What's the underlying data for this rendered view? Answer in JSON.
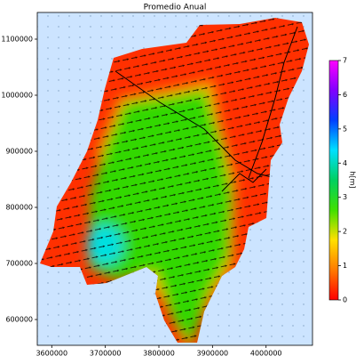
{
  "chart_data": {
    "type": "map",
    "title": "Promedio Anual",
    "xlim": [
      3573000,
      4086667
    ],
    "ylim": [
      554000,
      1147600
    ],
    "xticks": [
      3600000,
      3700000,
      3800000,
      3900000,
      4000000
    ],
    "yticks": [
      600000,
      700000,
      800000,
      900000,
      1000000,
      1100000
    ],
    "colorbar": {
      "label": "h[m]",
      "lim": [
        0,
        7
      ],
      "ticks": [
        0,
        1,
        2,
        3,
        4,
        5,
        6,
        7
      ],
      "colors": [
        "#ff0000",
        "#ff7a00",
        "#ffe000",
        "#40e000",
        "#00d060",
        "#00e0ff",
        "#0040ff",
        "#8000ff",
        "#ff00ff"
      ]
    },
    "ocean_color": "#cce4ff"
  }
}
